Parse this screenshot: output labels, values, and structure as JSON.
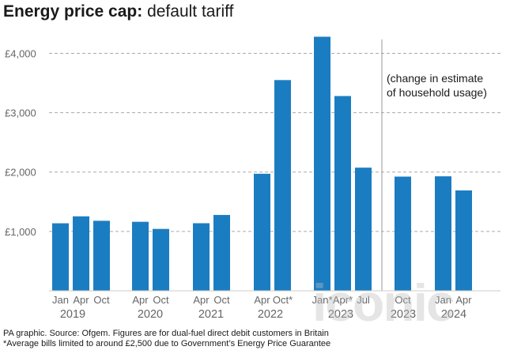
{
  "header": {
    "title_bold": "Energy price cap:",
    "title_light": "default tariff"
  },
  "footnotes": [
    "PA graphic. Source: Ofgem. Figures are for dual-fuel direct debit customers in Britain",
    "*Average bills limited to around £2,500 due to Government’s Energy Price Guarantee"
  ],
  "watermark": "iconic",
  "colors": {
    "bar": "#1b7dc1",
    "grid": "#aaaaaa",
    "axis_text": "#666666",
    "divider": "#999999"
  },
  "chart_data": {
    "type": "bar",
    "title": "Energy price cap: default tariff",
    "ylim": [
      0,
      4500
    ],
    "y_ticks": [
      {
        "value": 1000,
        "label": "£1,000"
      },
      {
        "value": 2000,
        "label": "£2,000"
      },
      {
        "value": 3000,
        "label": "£3,000"
      },
      {
        "value": 4000,
        "label": "£4,000"
      }
    ],
    "grid": "dashed horizontal",
    "bars": [
      {
        "label": "Jan",
        "year": "2019",
        "value": 1137
      },
      {
        "label": "Apr",
        "year": "2019",
        "value": 1254
      },
      {
        "label": "Oct",
        "year": "2019",
        "value": 1179
      },
      {
        "label": "Apr",
        "year": "2020",
        "value": 1162
      },
      {
        "label": "Oct",
        "year": "2020",
        "value": 1042
      },
      {
        "label": "Apr",
        "year": "2021",
        "value": 1138
      },
      {
        "label": "Oct",
        "year": "2021",
        "value": 1277
      },
      {
        "label": "Apr",
        "year": "2022",
        "value": 1971
      },
      {
        "label": "Oct*",
        "year": "2022",
        "value": 3549
      },
      {
        "label": "Jan*",
        "year": "2023",
        "value": 4279
      },
      {
        "label": "Apr*",
        "year": "2023",
        "value": 3280
      },
      {
        "label": "Jul",
        "year": "2023",
        "value": 2074
      },
      {
        "label": "Oct",
        "year": "2023",
        "value": 1923
      },
      {
        "label": "Jan",
        "year": "2024",
        "value": 1928
      },
      {
        "label": "Apr",
        "year": "2024",
        "value": 1690
      }
    ],
    "annotation": [
      "(change in estimate",
      "of household usage)"
    ]
  }
}
